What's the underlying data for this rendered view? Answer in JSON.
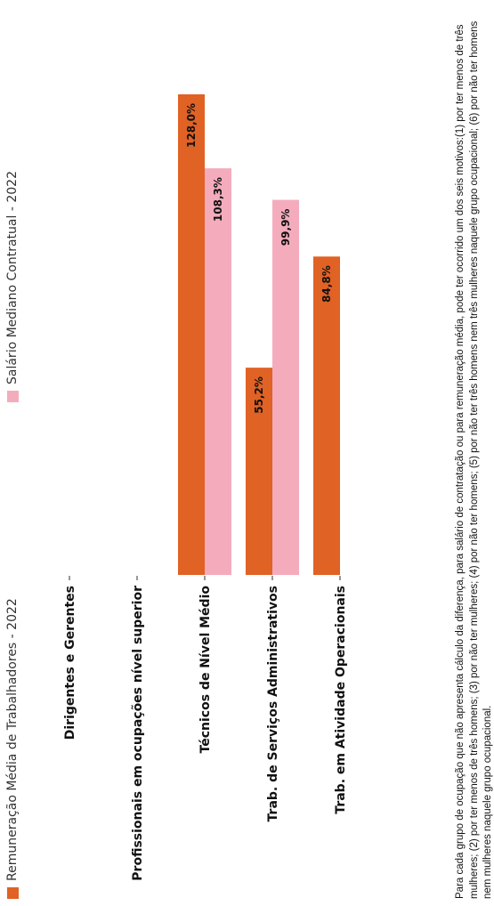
{
  "chart_data": {
    "type": "bar",
    "orientation": "horizontal",
    "categories": [
      "Dirigentes e Gerentes",
      "Profissionais em ocupações nível superior",
      "Técnicos de Nível Médio",
      "Trab. de Serviços Administrativos",
      "Trab. em Atividade Operacionais"
    ],
    "series": [
      {
        "name": "Remuneração Média de Trabalhadores - 2022",
        "color": "#e06224",
        "values": [
          null,
          null,
          128.0,
          55.2,
          84.8
        ],
        "labels": [
          "",
          "",
          "128,0%",
          "55,2%",
          "84,8%"
        ]
      },
      {
        "name": "Salário Mediano Contratual - 2022",
        "color": "#f4acbd",
        "values": [
          null,
          null,
          108.3,
          99.9,
          null
        ],
        "labels": [
          "",
          "",
          "108,3%",
          "99,9%",
          ""
        ]
      }
    ],
    "xlim": [
      0,
      128
    ],
    "legend_position": "top",
    "grid": false
  },
  "footnote": "Para cada grupo de ocupação que não apresenta cálculo da diferença, para salário de contratação ou para remuneração média, pode ter ocorrido um dos seis motivos:(1) por ter menos de três mulheres; (2) por ter menos de três homens; (3) por não ter mulheres; (4) por não ter homens; (5) por não ter três homens nem três mulheres naquele grupo ocupacional; (6) por não ter homens nem mulheres naquele grupo ocupacional."
}
